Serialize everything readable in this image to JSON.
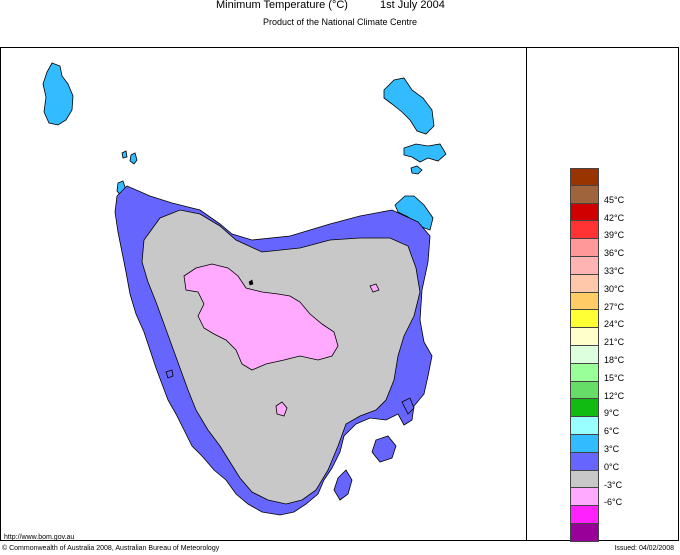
{
  "header": {
    "title": "Minimum Temperature (°C)",
    "date": "1st July 2004",
    "subtitle": "Product of the National Climate Centre"
  },
  "colors": {
    "band_below_0": "#ffaaff",
    "band_0_3": "#c8c8c8",
    "band_3_6": "#6666ff",
    "band_6_9": "#33bbff"
  },
  "legend": [
    {
      "color": "#993300",
      "label": ""
    },
    {
      "color": "#a0643c",
      "label": "45°C"
    },
    {
      "color": "#d00000",
      "label": "42°C"
    },
    {
      "color": "#ff3333",
      "label": "39°C"
    },
    {
      "color": "#ff9999",
      "label": "36°C"
    },
    {
      "color": "#ffb4b4",
      "label": "33°C"
    },
    {
      "color": "#ffc8aa",
      "label": "30°C"
    },
    {
      "color": "#ffcc66",
      "label": "27°C"
    },
    {
      "color": "#ffff33",
      "label": "24°C"
    },
    {
      "color": "#ffffcc",
      "label": "21°C"
    },
    {
      "color": "#ddffdd",
      "label": "18°C"
    },
    {
      "color": "#99ff99",
      "label": "15°C"
    },
    {
      "color": "#66dd66",
      "label": "12°C"
    },
    {
      "color": "#11bb11",
      "label": "9°C"
    },
    {
      "color": "#99ffff",
      "label": "6°C"
    },
    {
      "color": "#33bbff",
      "label": "3°C"
    },
    {
      "color": "#6666ff",
      "label": "0°C"
    },
    {
      "color": "#c8c8c8",
      "label": "-3°C"
    },
    {
      "color": "#ffaaff",
      "label": "-6°C"
    },
    {
      "color": "#ff22ff",
      "label": ""
    },
    {
      "color": "#990099",
      "label": ""
    }
  ],
  "footer": {
    "url": "http://www.bom.gov.au",
    "copyright": "© Commonwealth of Australia 2008, Australian Bureau of Meteorology",
    "issued": "Issued: 04/02/2008"
  }
}
